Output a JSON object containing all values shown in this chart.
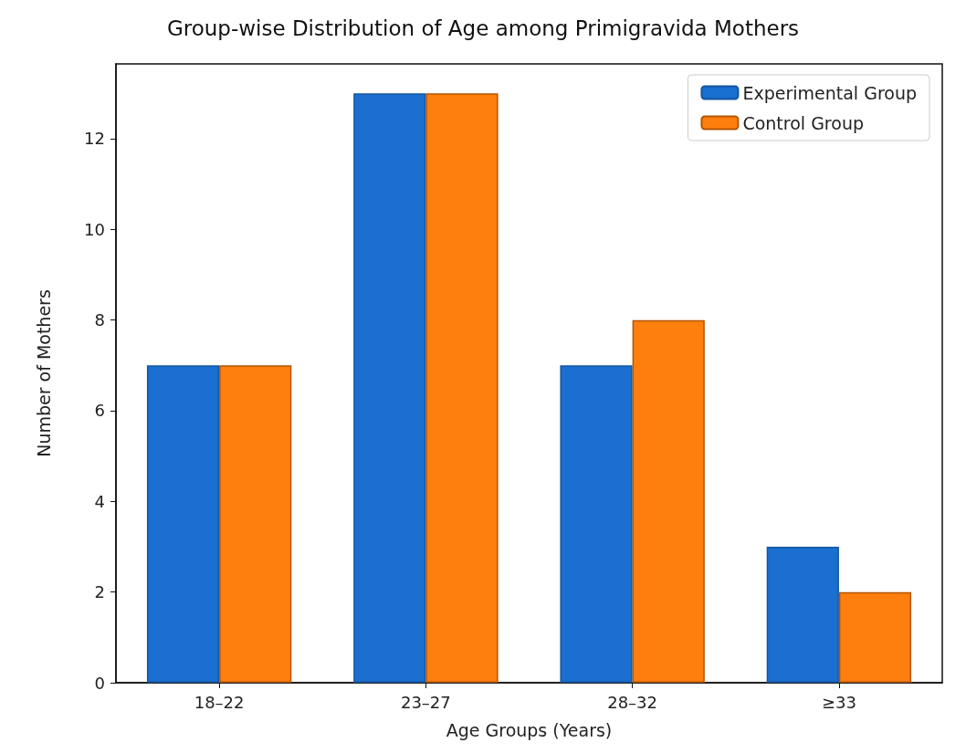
{
  "chart_data": {
    "type": "bar",
    "title": "Group-wise Distribution of Age among Primigravida Mothers",
    "xlabel": "Age Groups (Years)",
    "ylabel": "Number of Mothers",
    "categories": [
      "18–22",
      "23–27",
      "28–32",
      "≥33"
    ],
    "series": [
      {
        "name": "Experimental Group",
        "color": "#1a6fd0",
        "values": [
          7,
          13,
          7,
          3
        ]
      },
      {
        "name": "Control Group",
        "color": "#ff7f0e",
        "values": [
          7,
          13,
          8,
          2
        ]
      }
    ],
    "ylim": [
      0,
      13.65
    ],
    "yticks": [
      0,
      2,
      4,
      6,
      8,
      10,
      12
    ],
    "grid": false,
    "legend": "top right"
  }
}
